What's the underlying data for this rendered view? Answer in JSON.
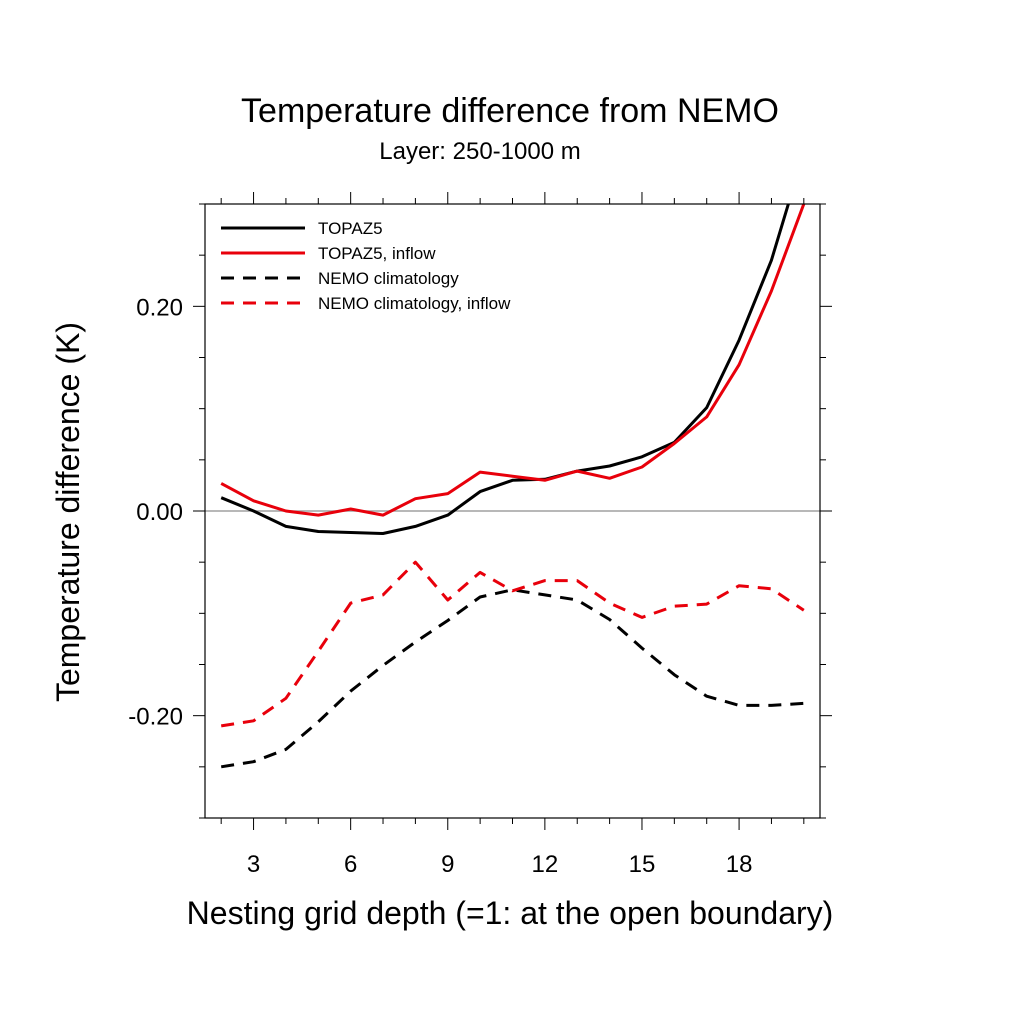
{
  "chart_data": {
    "type": "line",
    "title": "Temperature difference from NEMO",
    "subtitle": "Layer: 250-1000 m",
    "xlabel": "Nesting grid depth (=1: at the open boundary)",
    "ylabel": "Temperature difference (K)",
    "xlim": [
      1.5,
      20.5
    ],
    "ylim": [
      -0.3,
      0.3
    ],
    "x_ticks": [
      3,
      6,
      9,
      12,
      15,
      18
    ],
    "x_tick_labels": [
      "3",
      "6",
      "9",
      "12",
      "15",
      "18"
    ],
    "y_ticks": [
      -0.2,
      0.0,
      0.2
    ],
    "y_tick_labels": [
      "-0.20",
      "0.00",
      "0.20"
    ],
    "zero_line": true,
    "grid": false,
    "legend_position": "top-left",
    "x": [
      2,
      3,
      4,
      5,
      6,
      7,
      8,
      9,
      10,
      11,
      12,
      13,
      14,
      15,
      16,
      17,
      18,
      19,
      20
    ],
    "series": [
      {
        "name": "TOPAZ5",
        "color": "#000000",
        "dash": "solid",
        "values": [
          0.013,
          0.0,
          -0.015,
          -0.02,
          -0.021,
          -0.022,
          -0.015,
          -0.004,
          0.019,
          0.03,
          0.031,
          0.039,
          0.044,
          0.053,
          0.067,
          0.101,
          0.167,
          0.245,
          0.35
        ]
      },
      {
        "name": "TOPAZ5, inflow",
        "color": "#e8000b",
        "dash": "solid",
        "values": [
          0.027,
          0.01,
          0.0,
          -0.004,
          0.002,
          -0.004,
          0.012,
          0.017,
          0.038,
          0.034,
          0.03,
          0.039,
          0.032,
          0.043,
          0.066,
          0.092,
          0.143,
          0.215,
          0.3
        ]
      },
      {
        "name": "NEMO climatology",
        "color": "#000000",
        "dash": "dashed",
        "values": [
          -0.25,
          -0.245,
          -0.233,
          -0.206,
          -0.176,
          -0.151,
          -0.128,
          -0.107,
          -0.084,
          -0.077,
          -0.082,
          -0.087,
          -0.106,
          -0.134,
          -0.16,
          -0.181,
          -0.19,
          -0.19,
          -0.188
        ]
      },
      {
        "name": "NEMO climatology, inflow",
        "color": "#e8000b",
        "dash": "dashed",
        "values": [
          -0.21,
          -0.205,
          -0.183,
          -0.137,
          -0.09,
          -0.082,
          -0.05,
          -0.087,
          -0.06,
          -0.078,
          -0.068,
          -0.068,
          -0.09,
          -0.104,
          -0.093,
          -0.091,
          -0.073,
          -0.076,
          -0.097
        ]
      }
    ]
  }
}
